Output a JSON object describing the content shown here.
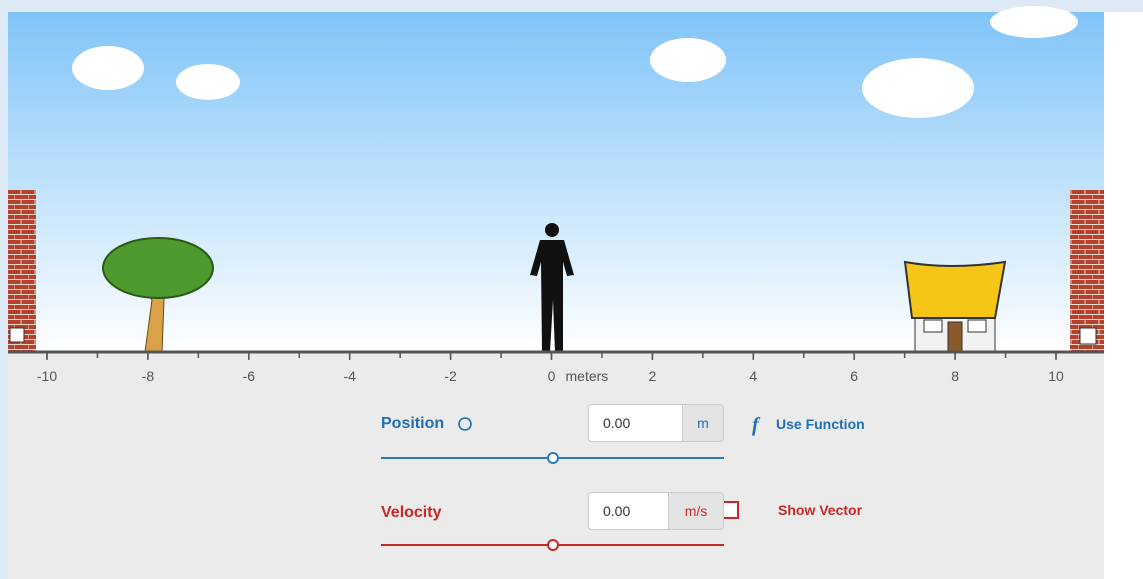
{
  "ruler": {
    "ticks": [
      -10,
      -8,
      -6,
      -4,
      -2,
      0,
      2,
      4,
      6,
      8,
      10
    ],
    "unit": "meters"
  },
  "controls": {
    "position": {
      "label": "Position",
      "value": "0.00",
      "unit": "m",
      "toggle": "Use Function"
    },
    "velocity": {
      "label": "Velocity",
      "value": "0.00",
      "unit": "m/s",
      "toggle": "Show Vector"
    }
  }
}
